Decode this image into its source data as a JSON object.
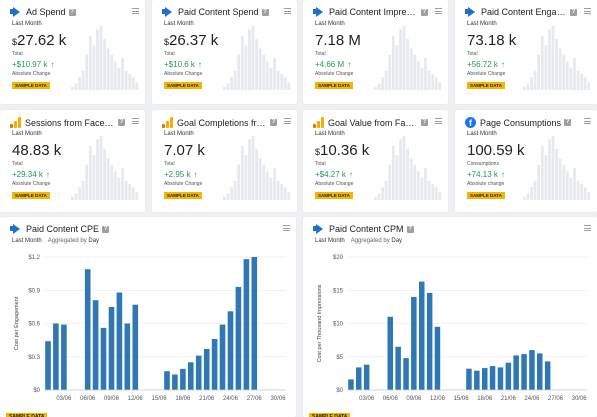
{
  "kpis": [
    {
      "title": "Ad Spend",
      "icon": "megaphone-icon",
      "period": "Last Month",
      "prefix": "$",
      "value": "27.62 k",
      "value_label": "Total",
      "change": "+$10.97 k",
      "change_label": "Absolute Change",
      "badge": "SAMPLE DATA"
    },
    {
      "title": "Paid Content Spend",
      "icon": "megaphone-icon",
      "period": "Last Month",
      "prefix": "$",
      "value": "26.37 k",
      "value_label": "Total",
      "change": "+$10.6 k",
      "change_label": "Absolute Change",
      "badge": "SAMPLE DATA"
    },
    {
      "title": "Paid Content Impressio...",
      "icon": "megaphone-icon",
      "period": "Last Month",
      "prefix": "",
      "value": "7.18 M",
      "value_label": "Total",
      "change": "+4.66 M",
      "change_label": "Absolute Change",
      "badge": "SAMPLE DATA"
    },
    {
      "title": "Paid Content Engage...",
      "icon": "megaphone-icon",
      "period": "Last Month",
      "prefix": "",
      "value": "73.18 k",
      "value_label": "Total",
      "change": "+56.72 k",
      "change_label": "Absolute Change",
      "badge": "SAMPLE DATA"
    },
    {
      "title": "Sessions from Faceb...",
      "icon": "google-analytics-icon",
      "period": "Last Month",
      "prefix": "",
      "value": "48.83 k",
      "value_label": "Total",
      "change": "+29.34 k",
      "change_label": "Absolute Change",
      "badge": "SAMPLE DATA"
    },
    {
      "title": "Goal Completions fro...",
      "icon": "google-analytics-icon",
      "period": "Last Month",
      "prefix": "",
      "value": "7.07 k",
      "value_label": "Total",
      "change": "+2.95 k",
      "change_label": "Absolute Change",
      "badge": "SAMPLE DATA"
    },
    {
      "title": "Goal Value from Face...",
      "icon": "google-analytics-icon",
      "period": "Last Month",
      "prefix": "$",
      "value": "10.36 k",
      "value_label": "Total",
      "change": "+$4.27 k",
      "change_label": "Absolute Change",
      "badge": "SAMPLE DATA"
    },
    {
      "title": "Page Consumptions",
      "icon": "facebook-icon",
      "period": "Last Month",
      "prefix": "",
      "value": "100.59 k",
      "value_label": "Consumptions",
      "change": "+74.13 k",
      "change_label": "Absolute change",
      "badge": "SAMPLE DATA"
    }
  ],
  "colors": {
    "bar": "#2f78b4",
    "spark": "#e6e9ee",
    "positive": "#1e9e4a",
    "badge": "#f2b705"
  },
  "charts": [
    {
      "title": "Paid Content CPE",
      "period": "Last Month",
      "agg_label": "Aggregated by",
      "agg_value": "Day",
      "badge": "SAMPLE DATA"
    },
    {
      "title": "Paid Content CPM",
      "period": "Last Month",
      "agg_label": "Aggregated by",
      "agg_value": "Day",
      "badge": "SAMPLE DATA"
    }
  ],
  "chart_data": [
    {
      "type": "bar",
      "title": "Paid Content CPE",
      "ylabel": "Cost per Engagement",
      "ylim": [
        0,
        1.2
      ],
      "yticks": [
        "$0",
        "$0.3",
        "$0.6",
        "$0.9",
        "$1.2"
      ],
      "ytick_values": [
        0,
        0.3,
        0.6,
        0.9,
        1.2
      ],
      "xticks": [
        "03/06",
        "06/06",
        "09/06",
        "12/06",
        "15/06",
        "18/06",
        "21/06",
        "24/06",
        "27/06",
        "30/06"
      ],
      "xtick_days": [
        3,
        6,
        9,
        12,
        15,
        18,
        21,
        24,
        27,
        30
      ],
      "days": [
        1,
        2,
        3,
        4,
        5,
        6,
        7,
        8,
        9,
        10,
        11,
        12,
        13,
        14,
        15,
        16,
        17,
        18,
        19,
        20,
        21,
        22,
        23,
        24,
        25,
        26,
        27,
        28,
        29,
        30
      ],
      "values": [
        0.44,
        0.6,
        0.59,
        0,
        0,
        1.09,
        0.81,
        0.56,
        0.75,
        0.88,
        0.6,
        0.77,
        0,
        0,
        0,
        0.17,
        0.14,
        0.19,
        0.25,
        0.31,
        0.37,
        0.46,
        0.59,
        0.71,
        0.93,
        1.18,
        1.2,
        0,
        0,
        0
      ],
      "grid": true
    },
    {
      "type": "bar",
      "title": "Paid Content CPM",
      "ylabel": "Cost per Thousand Impressions",
      "ylim": [
        0,
        20
      ],
      "yticks": [
        "$0",
        "$5",
        "$10",
        "$15",
        "$20"
      ],
      "ytick_values": [
        0,
        5,
        10,
        15,
        20
      ],
      "xticks": [
        "03/06",
        "06/06",
        "09/06",
        "12/06",
        "15/06",
        "18/06",
        "21/06",
        "24/06",
        "27/06",
        "30/06"
      ],
      "xtick_days": [
        3,
        6,
        9,
        12,
        15,
        18,
        21,
        24,
        27,
        30
      ],
      "days": [
        1,
        2,
        3,
        4,
        5,
        6,
        7,
        8,
        9,
        10,
        11,
        12,
        13,
        14,
        15,
        16,
        17,
        18,
        19,
        20,
        21,
        22,
        23,
        24,
        25,
        26,
        27,
        28,
        29,
        30
      ],
      "values": [
        1.6,
        3.4,
        3.8,
        0,
        0,
        11,
        6.5,
        4.8,
        14,
        16.3,
        14.6,
        9.5,
        0,
        0,
        0,
        3.2,
        2.9,
        3.3,
        3.6,
        3.4,
        4.1,
        5.2,
        5.4,
        6,
        5.5,
        4.3,
        0,
        0,
        0,
        0
      ],
      "grid": true
    }
  ]
}
